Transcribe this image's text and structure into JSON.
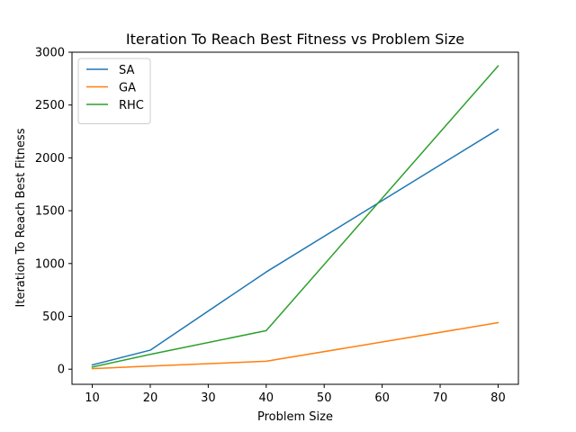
{
  "chart_data": {
    "type": "line",
    "title": "Iteration To Reach Best Fitness vs Problem Size",
    "xlabel": "Problem Size",
    "ylabel": "Iteration To Reach Best Fitness",
    "xlim": [
      6.5,
      83.5
    ],
    "ylim": [
      -143,
      3000
    ],
    "xticks": [
      10,
      20,
      30,
      40,
      50,
      60,
      70,
      80
    ],
    "yticks": [
      0,
      500,
      1000,
      1500,
      2000,
      2500,
      3000
    ],
    "grid": false,
    "legend_position": "upper-left",
    "x": [
      10,
      20,
      40,
      80
    ],
    "series": [
      {
        "name": "SA",
        "color": "#1f77b4",
        "values": [
          40,
          180,
          920,
          2270
        ]
      },
      {
        "name": "GA",
        "color": "#ff7f0e",
        "values": [
          5,
          30,
          75,
          440
        ]
      },
      {
        "name": "RHC",
        "color": "#2ca02c",
        "values": [
          20,
          140,
          365,
          2870
        ]
      }
    ]
  }
}
